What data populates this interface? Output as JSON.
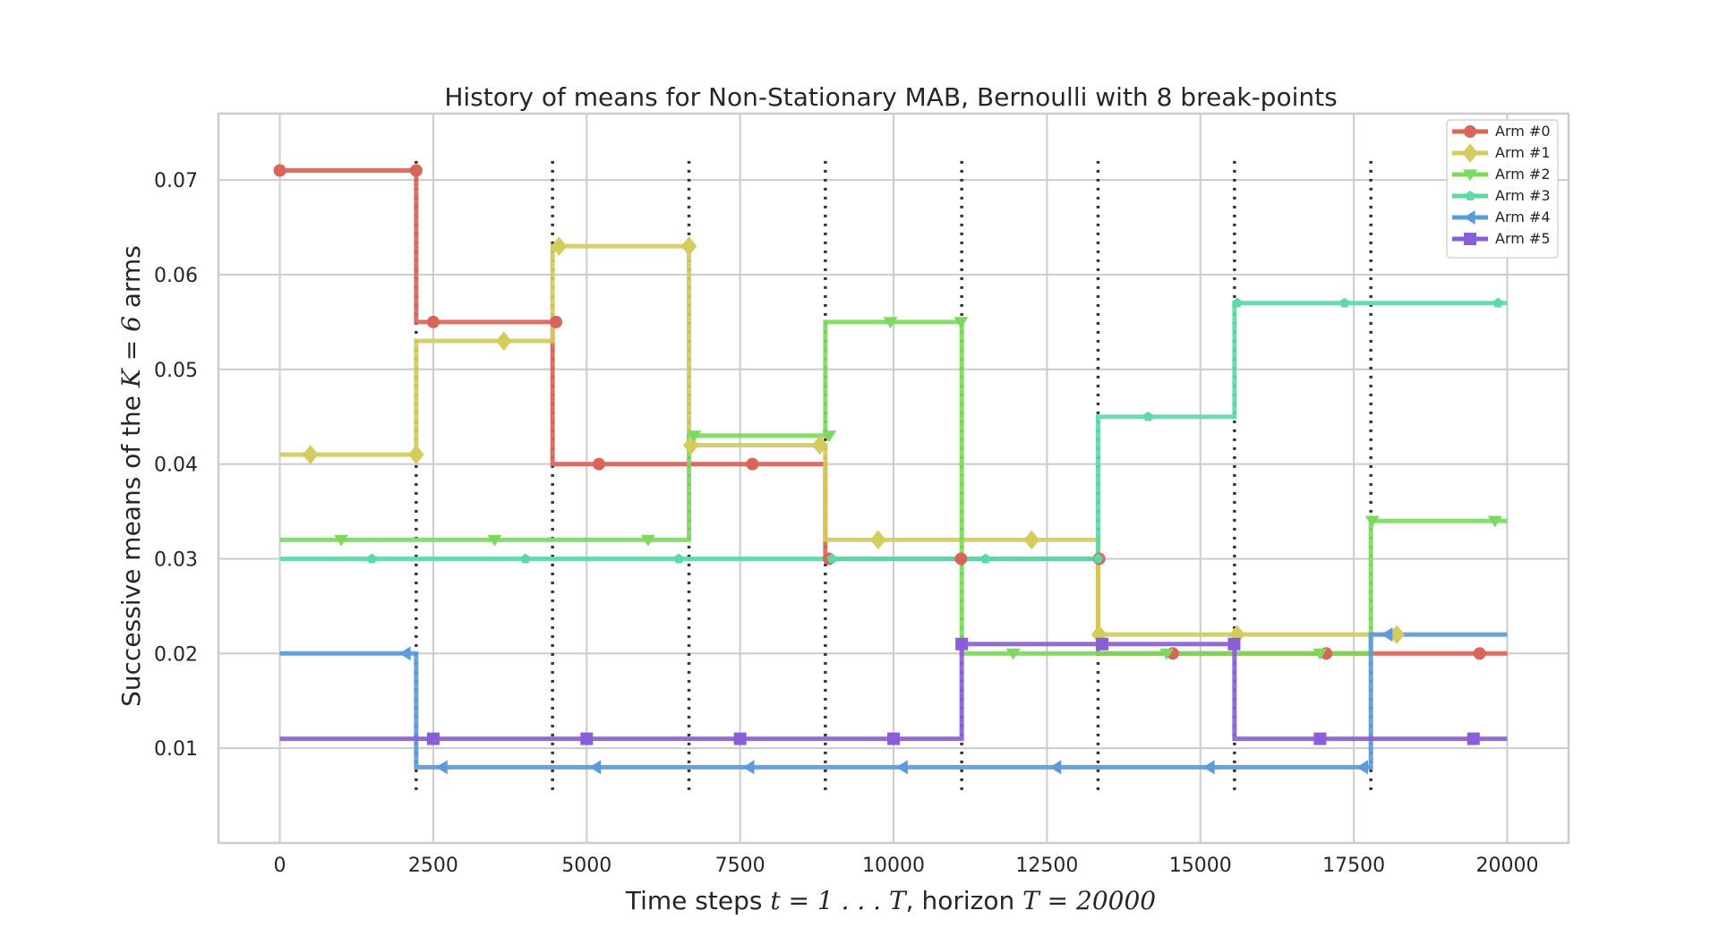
{
  "chart_data": {
    "type": "line",
    "step": true,
    "title": "History of means for Non-Stationary MAB, Bernoulli with 8 break-points",
    "xlabel": {
      "prefix": "Time steps ",
      "math1": "t = 1 . . . T",
      "middle": ", horizon ",
      "math2": "T = 20000"
    },
    "ylabel": {
      "prefix": "Successive means of the ",
      "math": "K = 6",
      "suffix": " arms"
    },
    "xlim": [
      -1000,
      21000
    ],
    "ylim": [
      0.0,
      0.077
    ],
    "xticks": [
      0,
      2500,
      5000,
      7500,
      10000,
      12500,
      15000,
      17500,
      20000
    ],
    "xtick_labels": [
      "0",
      "2500",
      "5000",
      "7500",
      "10000",
      "12500",
      "15000",
      "17500",
      "20000"
    ],
    "yticks": [
      0.01,
      0.02,
      0.03,
      0.04,
      0.05,
      0.06,
      0.07
    ],
    "ytick_labels": [
      "0.01",
      "0.02",
      "0.03",
      "0.04",
      "0.05",
      "0.06",
      "0.07"
    ],
    "grid": true,
    "legend_position": "top-right",
    "breakpoints": [
      2222,
      4444,
      6667,
      8889,
      11111,
      13333,
      15556,
      17778
    ],
    "breakpoint_range": [
      0.005,
      0.072
    ],
    "series": [
      {
        "name": "Arm #0",
        "color": "#d9655a",
        "marker": "circle",
        "segments": [
          [
            0,
            2222,
            0.071
          ],
          [
            2222,
            4444,
            0.055
          ],
          [
            4444,
            8889,
            0.04
          ],
          [
            8889,
            13333,
            0.03
          ],
          [
            13333,
            17778,
            0.02
          ],
          [
            17778,
            20000,
            0.02
          ]
        ],
        "markers": [
          [
            0,
            0.071
          ],
          [
            2222,
            0.071
          ],
          [
            2500,
            0.055
          ],
          [
            4500,
            0.055
          ],
          [
            5200,
            0.04
          ],
          [
            7700,
            0.04
          ],
          [
            8950,
            0.03
          ],
          [
            11100,
            0.03
          ],
          [
            13350,
            0.03
          ],
          [
            14550,
            0.02
          ],
          [
            17050,
            0.02
          ],
          [
            19550,
            0.02
          ]
        ]
      },
      {
        "name": "Arm #1",
        "color": "#d4cc5c",
        "marker": "diamond",
        "segments": [
          [
            0,
            2222,
            0.041
          ],
          [
            2222,
            4444,
            0.053
          ],
          [
            4444,
            6667,
            0.063
          ],
          [
            6667,
            8889,
            0.042
          ],
          [
            8889,
            13333,
            0.032
          ],
          [
            13333,
            17778,
            0.022
          ],
          [
            17778,
            18200,
            0.022
          ]
        ],
        "markers": [
          [
            500,
            0.041
          ],
          [
            2222,
            0.041
          ],
          [
            3650,
            0.053
          ],
          [
            4550,
            0.063
          ],
          [
            6667,
            0.063
          ],
          [
            6700,
            0.042
          ],
          [
            8800,
            0.042
          ],
          [
            9750,
            0.032
          ],
          [
            12250,
            0.032
          ],
          [
            13350,
            0.022
          ],
          [
            15600,
            0.022
          ],
          [
            18200,
            0.022
          ]
        ]
      },
      {
        "name": "Arm #2",
        "color": "#7dd95e",
        "marker": "triangle-down",
        "segments": [
          [
            0,
            6667,
            0.032
          ],
          [
            6667,
            8889,
            0.043
          ],
          [
            8889,
            11111,
            0.055
          ],
          [
            11111,
            17778,
            0.02
          ],
          [
            17778,
            20000,
            0.034
          ]
        ],
        "markers": [
          [
            1000,
            0.032
          ],
          [
            3500,
            0.032
          ],
          [
            6000,
            0.032
          ],
          [
            6750,
            0.043
          ],
          [
            8950,
            0.043
          ],
          [
            9950,
            0.055
          ],
          [
            11100,
            0.055
          ],
          [
            11950,
            0.02
          ],
          [
            14450,
            0.02
          ],
          [
            16950,
            0.02
          ],
          [
            17800,
            0.034
          ],
          [
            19800,
            0.034
          ]
        ]
      },
      {
        "name": "Arm #3",
        "color": "#5ed9a6",
        "marker": "pentagon",
        "segments": [
          [
            0,
            13333,
            0.03
          ],
          [
            13333,
            15556,
            0.045
          ],
          [
            15556,
            20000,
            0.057
          ]
        ],
        "markers": [
          [
            1500,
            0.03
          ],
          [
            4000,
            0.03
          ],
          [
            6500,
            0.03
          ],
          [
            9000,
            0.03
          ],
          [
            11500,
            0.03
          ],
          [
            13333,
            0.03
          ],
          [
            14150,
            0.045
          ],
          [
            15600,
            0.057
          ],
          [
            17350,
            0.057
          ],
          [
            19850,
            0.057
          ]
        ]
      },
      {
        "name": "Arm #4",
        "color": "#5b9bd9",
        "marker": "triangle-left",
        "segments": [
          [
            0,
            2222,
            0.02
          ],
          [
            2222,
            17778,
            0.008
          ],
          [
            17778,
            20000,
            0.022
          ]
        ],
        "markers": [
          [
            2050,
            0.02
          ],
          [
            2650,
            0.008
          ],
          [
            5150,
            0.008
          ],
          [
            7650,
            0.008
          ],
          [
            10150,
            0.008
          ],
          [
            12650,
            0.008
          ],
          [
            15150,
            0.008
          ],
          [
            17650,
            0.008
          ],
          [
            18050,
            0.022
          ]
        ]
      },
      {
        "name": "Arm #5",
        "color": "#8a5ed9",
        "marker": "square",
        "segments": [
          [
            0,
            11111,
            0.011
          ],
          [
            11111,
            15556,
            0.021
          ],
          [
            15556,
            20000,
            0.011
          ]
        ],
        "markers": [
          [
            2500,
            0.011
          ],
          [
            5000,
            0.011
          ],
          [
            7500,
            0.011
          ],
          [
            10000,
            0.011
          ],
          [
            11111,
            0.021
          ],
          [
            13400,
            0.021
          ],
          [
            15550,
            0.021
          ],
          [
            16950,
            0.011
          ],
          [
            19450,
            0.011
          ]
        ]
      }
    ]
  }
}
